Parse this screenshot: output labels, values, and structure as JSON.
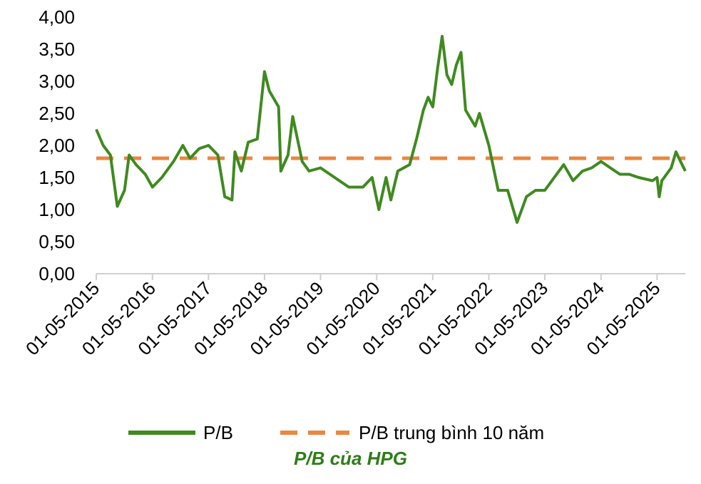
{
  "caption": "P/B của HPG",
  "colors": {
    "pb_line": "#3f8a1f",
    "avg_line": "#ea8741",
    "axis": "#cfcfcf",
    "caption": "#2e7d1a"
  },
  "chart_data": {
    "type": "line",
    "title": "",
    "xlabel": "",
    "ylabel": "",
    "ylim": [
      0,
      4
    ],
    "y_ticks": [
      "0,00",
      "0,50",
      "1,00",
      "1,50",
      "2,00",
      "2,50",
      "3,00",
      "3,50",
      "4,00"
    ],
    "x_ticks": [
      "01-05-2015",
      "01-05-2016",
      "01-05-2017",
      "01-05-2018",
      "01-05-2019",
      "01-05-2020",
      "01-05-2021",
      "01-05-2022",
      "01-05-2023",
      "01-05-2024",
      "01-05-2025"
    ],
    "x_range": [
      "01-05-2015",
      "01-11-2025"
    ],
    "grid": false,
    "legend_position": "bottom",
    "series": [
      {
        "name": "P/B",
        "style": "solid",
        "points": [
          [
            "01-05-2015",
            2.25
          ],
          [
            "15-06-2015",
            2.0
          ],
          [
            "01-08-2015",
            1.85
          ],
          [
            "15-09-2015",
            1.05
          ],
          [
            "01-11-2015",
            1.3
          ],
          [
            "01-12-2015",
            1.85
          ],
          [
            "15-01-2016",
            1.7
          ],
          [
            "15-03-2016",
            1.55
          ],
          [
            "01-05-2016",
            1.35
          ],
          [
            "01-07-2016",
            1.5
          ],
          [
            "15-09-2016",
            1.75
          ],
          [
            "15-11-2016",
            2.0
          ],
          [
            "01-01-2017",
            1.8
          ],
          [
            "01-03-2017",
            1.95
          ],
          [
            "01-05-2017",
            2.0
          ],
          [
            "01-07-2017",
            1.85
          ],
          [
            "15-08-2017",
            1.2
          ],
          [
            "01-10-2017",
            1.15
          ],
          [
            "20-10-2017",
            1.9
          ],
          [
            "01-12-2017",
            1.6
          ],
          [
            "15-01-2018",
            2.05
          ],
          [
            "15-03-2018",
            2.1
          ],
          [
            "01-05-2018",
            3.15
          ],
          [
            "01-06-2018",
            2.85
          ],
          [
            "01-08-2018",
            2.6
          ],
          [
            "15-08-2018",
            1.6
          ],
          [
            "01-10-2018",
            1.85
          ],
          [
            "01-11-2018",
            2.45
          ],
          [
            "01-01-2019",
            1.75
          ],
          [
            "15-02-2019",
            1.6
          ],
          [
            "01-05-2019",
            1.65
          ],
          [
            "01-08-2019",
            1.5
          ],
          [
            "01-11-2019",
            1.35
          ],
          [
            "01-02-2020",
            1.35
          ],
          [
            "01-04-2020",
            1.5
          ],
          [
            "15-05-2020",
            1.0
          ],
          [
            "01-07-2020",
            1.5
          ],
          [
            "01-08-2020",
            1.15
          ],
          [
            "15-09-2020",
            1.6
          ],
          [
            "01-12-2020",
            1.7
          ],
          [
            "15-01-2021",
            2.1
          ],
          [
            "01-03-2021",
            2.55
          ],
          [
            "01-04-2021",
            2.75
          ],
          [
            "01-05-2021",
            2.6
          ],
          [
            "01-06-2021",
            3.2
          ],
          [
            "01-07-2021",
            3.7
          ],
          [
            "01-08-2021",
            3.1
          ],
          [
            "01-09-2021",
            2.95
          ],
          [
            "01-10-2021",
            3.25
          ],
          [
            "01-11-2021",
            3.45
          ],
          [
            "01-12-2021",
            2.55
          ],
          [
            "01-02-2022",
            2.3
          ],
          [
            "01-03-2022",
            2.5
          ],
          [
            "01-05-2022",
            2.0
          ],
          [
            "01-07-2022",
            1.3
          ],
          [
            "01-09-2022",
            1.3
          ],
          [
            "01-11-2022",
            0.8
          ],
          [
            "01-01-2023",
            1.2
          ],
          [
            "01-03-2023",
            1.3
          ],
          [
            "01-05-2023",
            1.3
          ],
          [
            "01-07-2023",
            1.5
          ],
          [
            "01-09-2023",
            1.7
          ],
          [
            "01-11-2023",
            1.45
          ],
          [
            "01-01-2024",
            1.6
          ],
          [
            "01-03-2024",
            1.65
          ],
          [
            "01-05-2024",
            1.75
          ],
          [
            "01-07-2024",
            1.65
          ],
          [
            "01-09-2024",
            1.55
          ],
          [
            "01-11-2024",
            1.55
          ],
          [
            "01-01-2025",
            1.5
          ],
          [
            "01-04-2025",
            1.45
          ],
          [
            "01-05-2025",
            1.5
          ],
          [
            "15-05-2025",
            1.2
          ],
          [
            "01-06-2025",
            1.45
          ],
          [
            "01-08-2025",
            1.65
          ],
          [
            "01-09-2025",
            1.9
          ],
          [
            "01-10-2025",
            1.75
          ],
          [
            "01-11-2025",
            1.6
          ]
        ]
      },
      {
        "name": "P/B trung bình 10 năm",
        "style": "dashed",
        "points": [
          [
            "01-05-2015",
            1.8
          ],
          [
            "01-11-2025",
            1.8
          ]
        ]
      }
    ]
  }
}
